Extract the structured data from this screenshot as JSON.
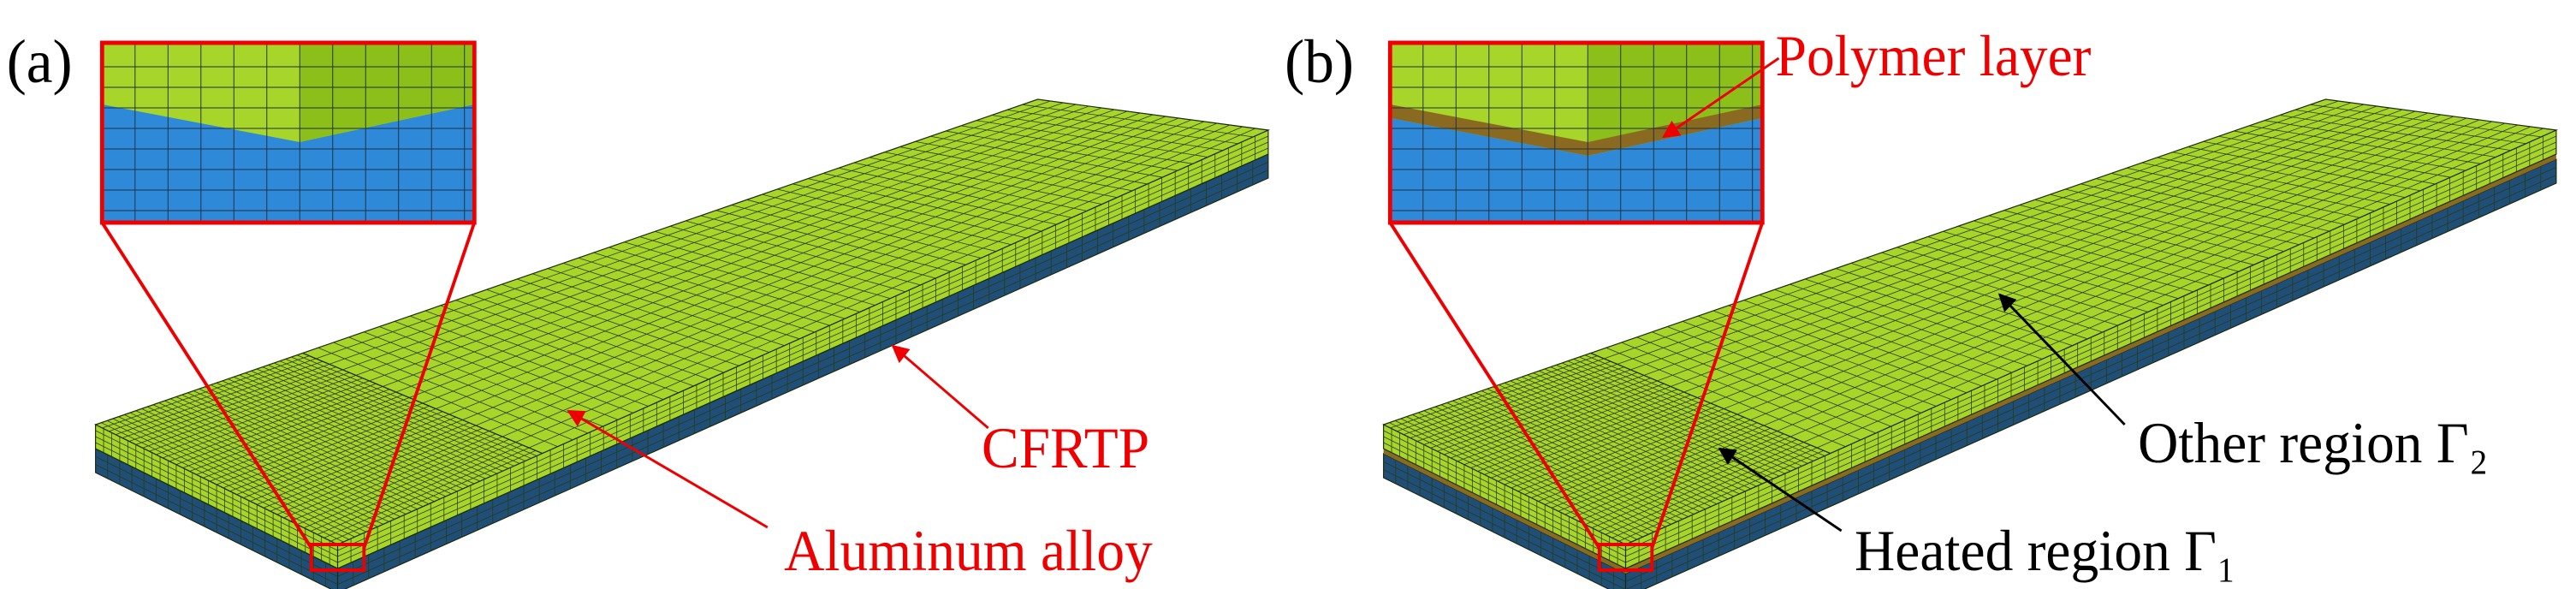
{
  "panels": [
    {
      "label": "(a)",
      "annotations": [
        "CFRTP",
        "Aluminum alloy"
      ]
    },
    {
      "label": "(b)",
      "annotations": [
        "Polymer layer",
        "Other region Γ₂",
        "Heated region Γ₁"
      ]
    }
  ]
}
